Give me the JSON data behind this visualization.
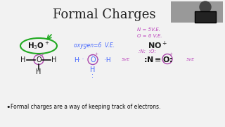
{
  "title": "Formal Charges",
  "title_fontsize": 13,
  "title_color": "#222222",
  "slide_bg": "#f2f2f2",
  "h3o_circle_color": "#22aa22",
  "oxygen_text": "oxygen = 6  V.E.",
  "oxygen_color": "#4466ff",
  "n_ve_text": "N = 5V.E.",
  "o_ve_text": "O = 6 V.E.",
  "nve_color": "#bb44bb",
  "no_label": "NO",
  "no_color": "#222222",
  "bullet_text": "Formal charges are a way of keeping track of electrons.",
  "bullet_color": "#111111",
  "bullet_fontsize": 5.5,
  "purple": "#aa44aa",
  "blue": "#4466ff",
  "green": "#22aa22",
  "black": "#111111",
  "webcam_bg": "#999999"
}
